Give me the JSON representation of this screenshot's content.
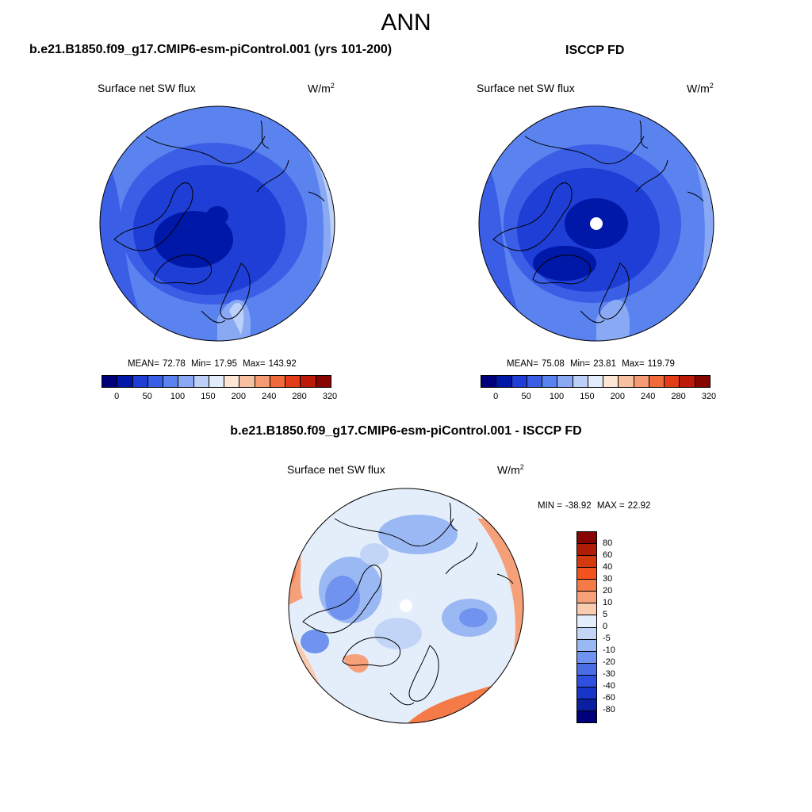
{
  "figure": {
    "title": "ANN"
  },
  "panels": {
    "model": {
      "title": "b.e21.B1850.f09_g17.CMIP6-esm-piControl.001 (yrs 101-200)",
      "variable": "Surface net SW flux",
      "units": "W/m",
      "units_sup": "2",
      "stats": {
        "mean_label": "MEAN=",
        "mean": "72.78",
        "min_label": "Min=",
        "min": "17.95",
        "max_label": "Max=",
        "max": "143.92"
      }
    },
    "obs": {
      "title": "ISCCP FD",
      "variable": "Surface net SW flux",
      "units": "W/m",
      "units_sup": "2",
      "stats": {
        "mean_label": "MEAN=",
        "mean": "75.08",
        "min_label": "Min=",
        "min": "23.81",
        "max_label": "Max=",
        "max": "119.79"
      }
    },
    "diff": {
      "title": "b.e21.B1850.f09_g17.CMIP6-esm-piControl.001 - ISCCP FD",
      "variable": "Surface net SW flux",
      "units": "W/m",
      "units_sup": "2",
      "stats": {
        "min_label": "MIN =",
        "min": "-38.92",
        "max_label": "MAX =",
        "max": "22.92"
      }
    }
  },
  "colorbars": {
    "absolute": {
      "colors": [
        "#00007a",
        "#0018a8",
        "#1e3ed6",
        "#3a5fe6",
        "#5a83f0",
        "#8aa9f5",
        "#bcd0f8",
        "#e2ecfb",
        "#fde6d4",
        "#f7c0a0",
        "#f59a72",
        "#f06a3c",
        "#e23c18",
        "#bb1a08",
        "#870500"
      ],
      "labels": [
        "0",
        "50",
        "100",
        "150",
        "200",
        "240",
        "280",
        "320"
      ]
    },
    "difference": {
      "colors": [
        "#870500",
        "#b01d06",
        "#d43a10",
        "#f2521d",
        "#f47a47",
        "#f6a079",
        "#f9cbb0",
        "#e4eefb",
        "#c2d5f7",
        "#9ab8f3",
        "#6f93ee",
        "#4a6de6",
        "#2f4fe0",
        "#1735c9",
        "#0a1fa0",
        "#00007a"
      ],
      "labels": [
        "80",
        "60",
        "40",
        "30",
        "20",
        "10",
        "5",
        "0",
        "-5",
        "-10",
        "-20",
        "-30",
        "-40",
        "-60",
        "-80"
      ]
    }
  }
}
